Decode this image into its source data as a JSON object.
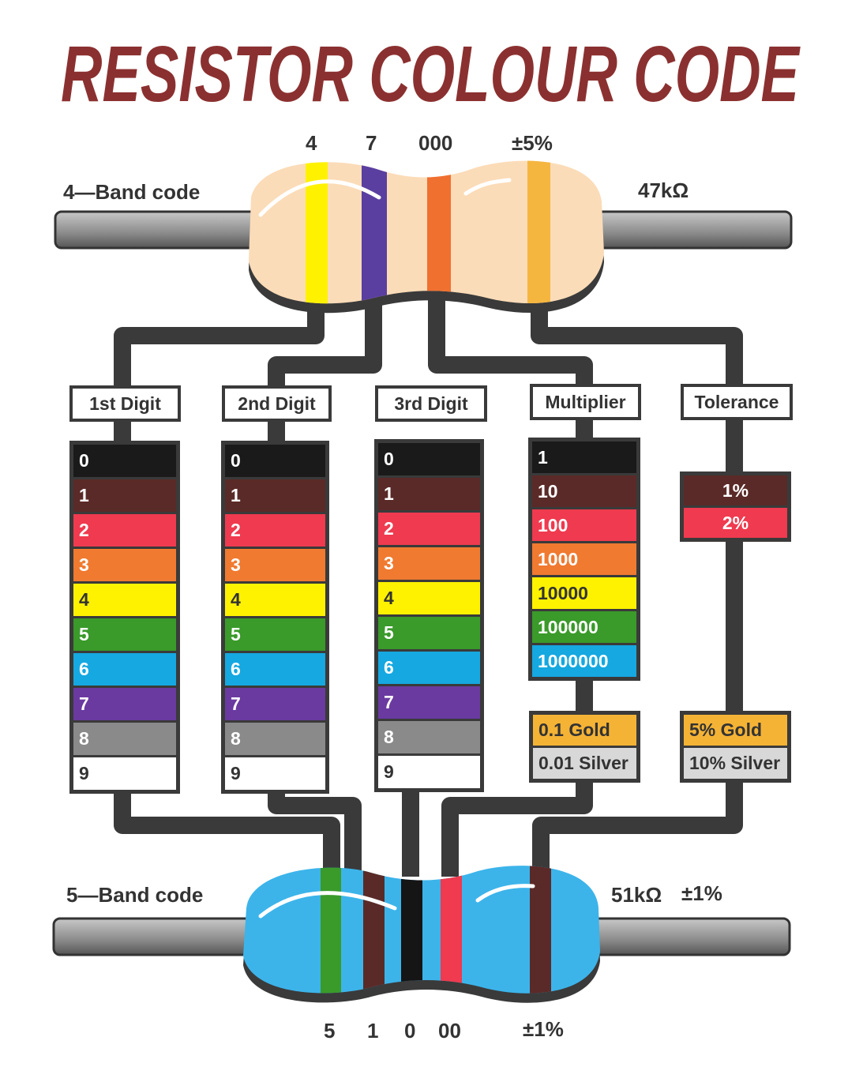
{
  "title": "RESISTOR COLOUR CODE",
  "four_band": {
    "label": "4—Band code",
    "value": "47kΩ",
    "band_labels": [
      "4",
      "7",
      "000",
      "±5%"
    ],
    "band_colors": [
      "#fff200",
      "#5a3fa0",
      "#f07030",
      "#f5b640"
    ],
    "body_color": "#fbdcb8"
  },
  "five_band": {
    "label": "5—Band code",
    "value": "51kΩ",
    "tolerance": "±1%",
    "band_labels": [
      "5",
      "1",
      "0",
      "00",
      "±1%"
    ],
    "band_colors": [
      "#3a9a2a",
      "#5a2a28",
      "#151515",
      "#ef3a4f",
      "#5a2a28"
    ],
    "body_color": "#3cb4ea"
  },
  "columns": {
    "first": "1st Digit",
    "second": "2nd Digit",
    "third": "3rd Digit",
    "multiplier": "Multiplier",
    "tolerance": "Tolerance"
  },
  "digits": [
    {
      "label": "0",
      "color": "#1a1a1a"
    },
    {
      "label": "1",
      "color": "#5a2a28"
    },
    {
      "label": "2",
      "color": "#ef3a4f"
    },
    {
      "label": "3",
      "color": "#f07a30"
    },
    {
      "label": "4",
      "color": "#fff200",
      "dark": true
    },
    {
      "label": "5",
      "color": "#3a9a2a"
    },
    {
      "label": "6",
      "color": "#16a8e0"
    },
    {
      "label": "7",
      "color": "#6a3aa0"
    },
    {
      "label": "8",
      "color": "#8a8a8a"
    },
    {
      "label": "9",
      "color": "#ffffff",
      "dark": true
    }
  ],
  "multipliers": [
    {
      "label": "1",
      "color": "#1a1a1a"
    },
    {
      "label": "10",
      "color": "#5a2a28"
    },
    {
      "label": "100",
      "color": "#ef3a4f"
    },
    {
      "label": "1000",
      "color": "#f07a30"
    },
    {
      "label": "10000",
      "color": "#fff200",
      "dark": true
    },
    {
      "label": "100000",
      "color": "#3a9a2a"
    },
    {
      "label": "1000000",
      "color": "#16a8e0"
    }
  ],
  "tolerances": [
    {
      "label": "1%",
      "color": "#5a2a28"
    },
    {
      "label": "2%",
      "color": "#ef3a4f"
    }
  ],
  "multiplier_extra": [
    {
      "label": "0.1 Gold",
      "color": "#f5b335",
      "dark": true
    },
    {
      "label": "0.01 Silver",
      "color": "#d8d8d8",
      "dark": true
    }
  ],
  "tolerance_extra": [
    {
      "label": "5% Gold",
      "color": "#f5b335",
      "dark": true
    },
    {
      "label": "10% Silver",
      "color": "#d8d8d8",
      "dark": true
    }
  ],
  "colors": {
    "title": "#8b3030",
    "wire": "#3a3a3a",
    "lead": "#9a9a9a"
  }
}
